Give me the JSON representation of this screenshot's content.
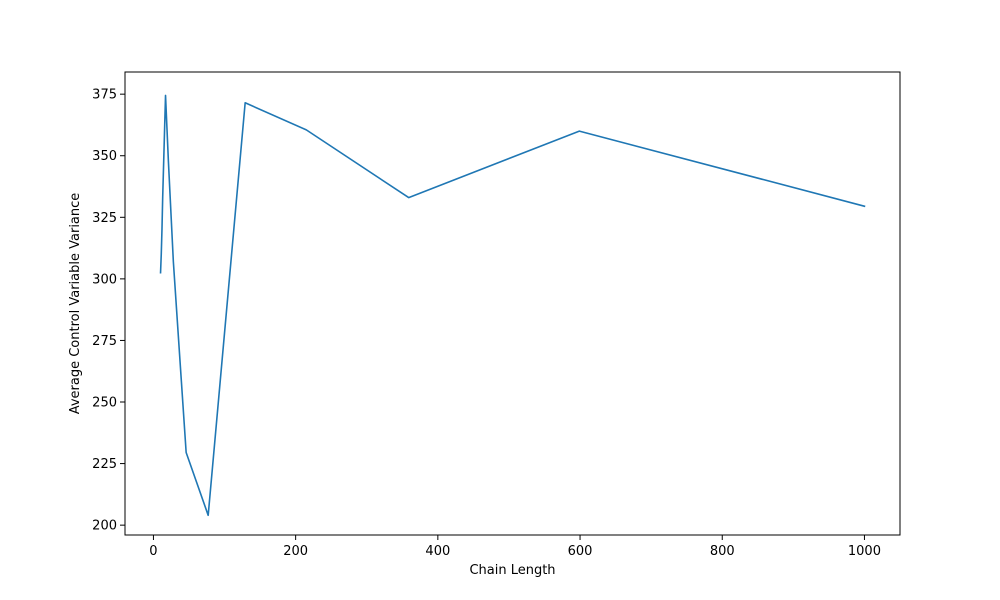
{
  "chart_data": {
    "type": "line",
    "title": "",
    "xlabel": "Chain Length",
    "ylabel": "Average Control Variable Variance",
    "xlim": [
      -40,
      1050
    ],
    "ylim": [
      196,
      384
    ],
    "x_ticks": [
      0,
      200,
      400,
      600,
      800,
      1000
    ],
    "x_tick_labels": [
      "0",
      "200",
      "400",
      "600",
      "800",
      "1000"
    ],
    "y_ticks": [
      200,
      225,
      250,
      275,
      300,
      325,
      350,
      375
    ],
    "y_tick_labels": [
      "200",
      "225",
      "250",
      "275",
      "300",
      "325",
      "350",
      "375"
    ],
    "grid": false,
    "legend": "none",
    "colors": {
      "line": "#1f77b4",
      "axes": "#000000",
      "background": "#ffffff"
    },
    "series": [
      {
        "x": [
          10,
          11,
          12,
          13,
          17,
          21,
          28,
          46,
          77,
          129,
          215,
          359,
          599,
          1000
        ],
        "y": [
          302.5,
          310,
          320,
          333,
          374.5,
          348,
          307,
          229.5,
          204,
          371.5,
          360.5,
          333,
          360,
          329.5
        ]
      }
    ]
  }
}
